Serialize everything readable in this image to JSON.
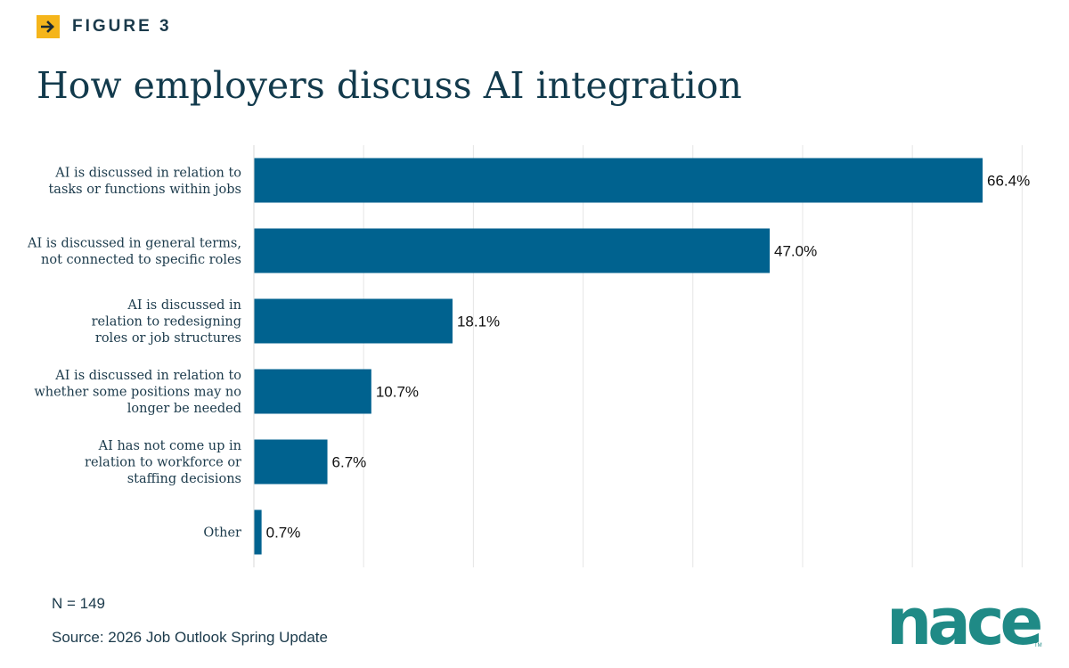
{
  "figure_label": "FIGURE 3",
  "title": "How employers discuss AI integration",
  "footnote_n": "N = 149",
  "source": "Source: 2026 Job Outlook Spring Update",
  "logo_text": "nace",
  "logo_tm": "TM",
  "colors": {
    "bar": "#00628f",
    "accent": "#f5b51b",
    "title": "#123a4c",
    "logo": "#1f8a86",
    "grid": "#e6e6e6"
  },
  "icons": {
    "figure_arrow": "arrow-right-icon"
  },
  "chart_data": {
    "type": "bar",
    "orientation": "horizontal",
    "categories": [
      [
        "AI is discussed in relation to",
        "tasks or functions within jobs"
      ],
      [
        "AI is discussed in general terms,",
        "not connected to specific roles"
      ],
      [
        "AI is discussed in",
        "relation to redesigning",
        "roles or job structures"
      ],
      [
        "AI is discussed in relation to",
        "whether some positions may no",
        "longer be needed"
      ],
      [
        "AI has not come up in",
        "relation to workforce or",
        "staffing decisions"
      ],
      [
        "Other"
      ]
    ],
    "values": [
      66.4,
      47.0,
      18.1,
      10.7,
      6.7,
      0.7
    ],
    "data_labels": [
      "66.4%",
      "47.0%",
      "18.1%",
      "10.7%",
      "6.7%",
      "0.7%"
    ],
    "xlim": [
      0,
      70
    ],
    "grid_step": 10,
    "grid": true,
    "legend": "none"
  }
}
